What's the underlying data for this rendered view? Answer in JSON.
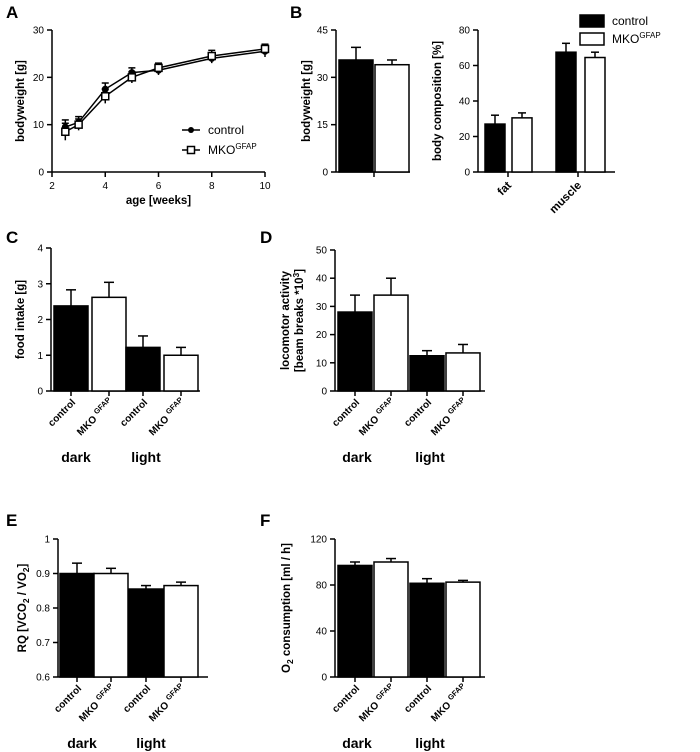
{
  "chart_data": [
    {
      "panel": "A",
      "type": "line",
      "title": "",
      "xlabel": "age [weeks]",
      "ylabel": "bodyweight [g]",
      "xlim": [
        2,
        10
      ],
      "ylim": [
        0,
        30
      ],
      "xticks": [
        2,
        4,
        6,
        8,
        10
      ],
      "yticks": [
        0,
        10,
        20,
        30
      ],
      "legend": {
        "placement": "bottom-right",
        "entries": [
          {
            "base": "control",
            "sup": ""
          },
          {
            "base": "MKO",
            "sup": "GFAP"
          }
        ]
      },
      "series": [
        {
          "name": "control",
          "marker": "filled-circle",
          "x": [
            2.5,
            3,
            4,
            5,
            6,
            8,
            10
          ],
          "y": [
            9.5,
            10.5,
            17.5,
            21,
            21.5,
            24,
            25.5
          ],
          "err": [
            1.5,
            1.2,
            1.3,
            1.0,
            1.0,
            1.0,
            1.2
          ]
        },
        {
          "name": "MKO GFAP",
          "marker": "open-square",
          "x": [
            2.5,
            3,
            4,
            5,
            6,
            8,
            10
          ],
          "y": [
            8.5,
            10,
            16,
            20,
            22,
            24.5,
            26
          ],
          "err": [
            1.8,
            1.2,
            1.5,
            1.2,
            1.0,
            1.2,
            1.0
          ]
        }
      ]
    },
    {
      "panel": "B",
      "type": "bar",
      "title": "",
      "xlabel": "",
      "ylabel": "bodyweight [g]",
      "ylim": [
        0,
        45
      ],
      "yticks": [
        0,
        15,
        30,
        45
      ],
      "categories": [
        ""
      ],
      "series": [
        {
          "name": "control",
          "values": [
            35.5
          ],
          "err": [
            4
          ]
        },
        {
          "name": "MKO GFAP",
          "values": [
            34
          ],
          "err": [
            1.5
          ]
        }
      ]
    },
    {
      "panel": "B",
      "type": "bar",
      "title": "",
      "xlabel": "",
      "ylabel": "body composition [%]",
      "ylim": [
        0,
        80
      ],
      "yticks": [
        0,
        20,
        40,
        60,
        80
      ],
      "categories": [
        "fat",
        "muscle"
      ],
      "legend": {
        "placement": "top-right",
        "entries": [
          {
            "base": "control",
            "sup": ""
          },
          {
            "base": "MKO",
            "sup": "GFAP"
          }
        ]
      },
      "series": [
        {
          "name": "control",
          "values": [
            27,
            67.5
          ],
          "err": [
            5,
            5
          ]
        },
        {
          "name": "MKO GFAP",
          "values": [
            30.5,
            64.5
          ],
          "err": [
            2.8,
            3
          ]
        }
      ]
    },
    {
      "panel": "C",
      "type": "bar",
      "title": "",
      "xlabel": "",
      "ylabel": "food intake [g]",
      "ylim": [
        0,
        4
      ],
      "yticks": [
        0,
        1,
        2,
        3,
        4
      ],
      "groups": [
        "dark",
        "light"
      ],
      "categories": [
        "control",
        "MKO GFAP",
        "control",
        "MKO GFAP"
      ],
      "values": [
        2.38,
        2.62,
        1.22,
        1.0
      ],
      "err": [
        0.45,
        0.42,
        0.32,
        0.22
      ]
    },
    {
      "panel": "D",
      "type": "bar",
      "title": "",
      "xlabel": "",
      "ylabel": "locomotor activity [beam breaks *10^3]",
      "ylim": [
        0,
        50
      ],
      "yticks": [
        0,
        10,
        20,
        30,
        40,
        50
      ],
      "groups": [
        "dark",
        "light"
      ],
      "categories": [
        "control",
        "MKO GFAP",
        "control",
        "MKO GFAP"
      ],
      "values": [
        28,
        34,
        12.5,
        13.5
      ],
      "err": [
        6,
        6,
        1.8,
        3
      ]
    },
    {
      "panel": "E",
      "type": "bar",
      "title": "",
      "xlabel": "",
      "ylabel": "RQ [VCO2 / VO2]",
      "ylim": [
        0.6,
        1.0
      ],
      "yticks": [
        0.6,
        0.7,
        0.8,
        0.9,
        1.0
      ],
      "groups": [
        "dark",
        "light"
      ],
      "categories": [
        "control",
        "MKO GFAP",
        "control",
        "MKO GFAP"
      ],
      "values": [
        0.9,
        0.9,
        0.855,
        0.865
      ],
      "err": [
        0.03,
        0.015,
        0.01,
        0.01
      ]
    },
    {
      "panel": "F",
      "type": "bar",
      "title": "",
      "xlabel": "",
      "ylabel": "O2 consumption [ml / h]",
      "ylim": [
        0,
        120
      ],
      "yticks": [
        0,
        40,
        80,
        120
      ],
      "groups": [
        "dark",
        "light"
      ],
      "categories": [
        "control",
        "MKO GFAP",
        "control",
        "MKO GFAP"
      ],
      "values": [
        97,
        100,
        81.5,
        82.5
      ],
      "err": [
        3,
        3,
        4,
        1.5
      ]
    }
  ]
}
